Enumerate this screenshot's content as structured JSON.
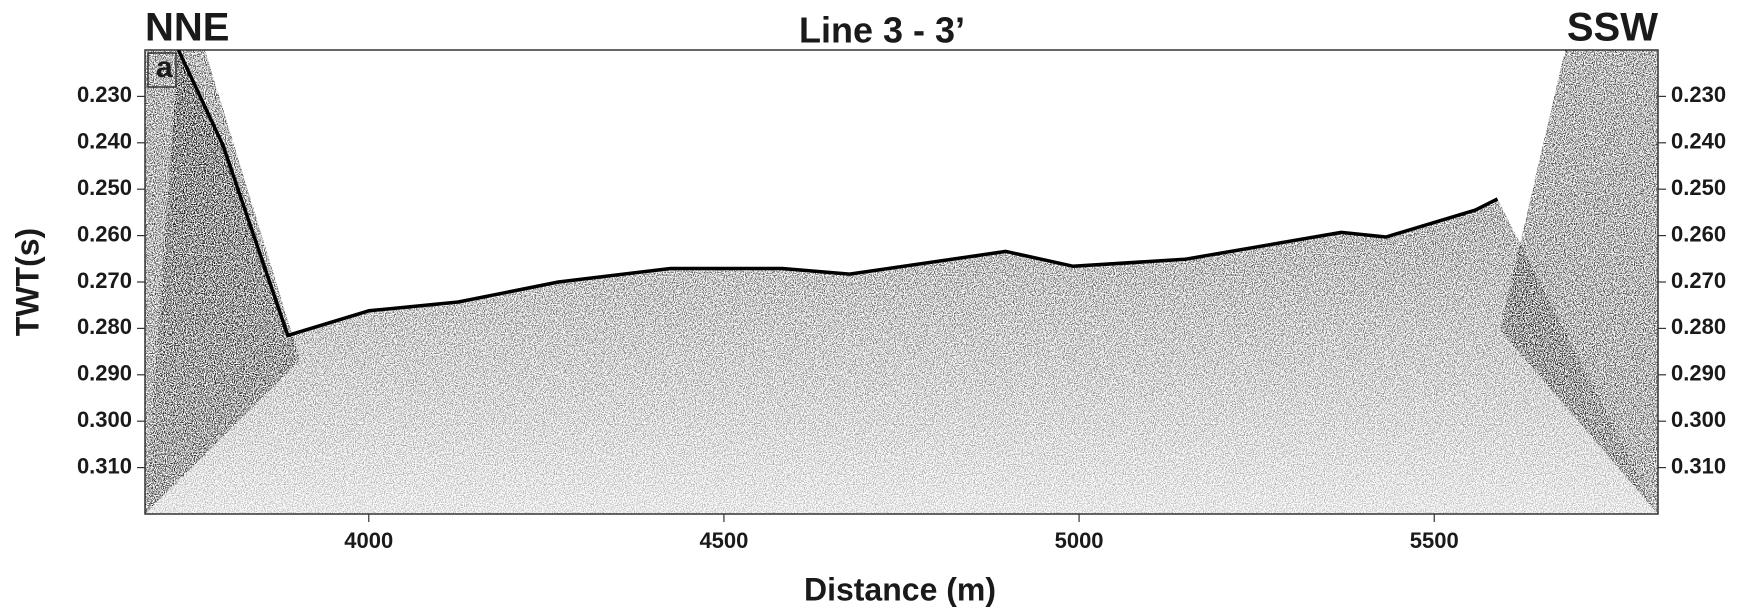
{
  "chart_data": {
    "type": "line",
    "title": "Line 3 - 3’",
    "left_label": "NNE",
    "right_label": "SSW",
    "panel_label": "a",
    "xlabel": "Distance (m)",
    "ylabel": "TWT(s)",
    "xlim": [
      3685,
      5815
    ],
    "xticks": [
      4000,
      4500,
      5000,
      5500
    ],
    "ylim": [
      0.22,
      0.32
    ],
    "y_inverted": true,
    "yticks": [
      {
        "value": 0.23,
        "label": "0.230"
      },
      {
        "value": 0.24,
        "label": "0.240"
      },
      {
        "value": 0.25,
        "label": "0.250"
      },
      {
        "value": 0.26,
        "label": "0.260"
      },
      {
        "value": 0.27,
        "label": "0.270"
      },
      {
        "value": 0.28,
        "label": "0.280"
      },
      {
        "value": 0.29,
        "label": "0.290"
      },
      {
        "value": 0.3,
        "label": "0.300"
      },
      {
        "value": 0.31,
        "label": "0.310"
      }
    ],
    "series": [
      {
        "color": "#000000",
        "x": [
          3732,
          3795,
          3886,
          4000,
          4126,
          4267,
          4425,
          4582,
          4677,
          4897,
          4991,
          5149,
          5369,
          5432,
          5558,
          5589
        ],
        "values": [
          0.22,
          0.2406,
          0.2815,
          0.2762,
          0.2743,
          0.27,
          0.2671,
          0.2671,
          0.2683,
          0.2634,
          0.2666,
          0.2651,
          0.2593,
          0.2603,
          0.2545,
          0.2521
        ]
      }
    ]
  }
}
